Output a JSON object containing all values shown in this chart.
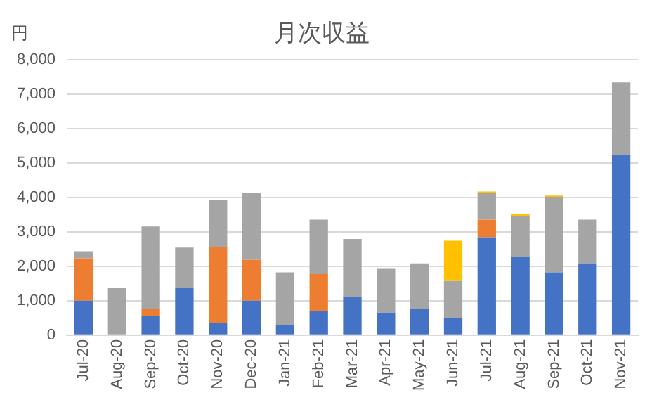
{
  "chart_data": {
    "type": "bar",
    "title": "月次収益",
    "ylabel": "円",
    "categories": [
      "Jul-20",
      "Aug-20",
      "Sep-20",
      "Oct-20",
      "Nov-20",
      "Dec-20",
      "Jan-21",
      "Feb-21",
      "Mar-21",
      "Apr-21",
      "May-21",
      "Jun-21",
      "Jul-21",
      "Aug-21",
      "Sep-21",
      "Oct-21",
      "Nov-21"
    ],
    "stacked": true,
    "series": [
      {
        "color": "#4472c4",
        "values": [
          1000,
          0,
          550,
          1360,
          340,
          1000,
          290,
          700,
          1110,
          650,
          750,
          490,
          2840,
          2280,
          1820,
          2080,
          5240
        ]
      },
      {
        "color": "#ed7d31",
        "values": [
          1230,
          0,
          200,
          0,
          2210,
          1180,
          0,
          1070,
          0,
          0,
          0,
          0,
          510,
          0,
          0,
          0,
          0
        ]
      },
      {
        "color": "#a5a5a5",
        "values": [
          200,
          1360,
          2400,
          1180,
          1370,
          1940,
          1530,
          1580,
          1680,
          1270,
          1330,
          1080,
          770,
          1180,
          2180,
          1270,
          2100
        ]
      },
      {
        "color": "#ffc000",
        "values": [
          0,
          0,
          0,
          0,
          0,
          0,
          0,
          0,
          0,
          0,
          0,
          1170,
          50,
          50,
          50,
          0,
          0
        ]
      }
    ],
    "ylim": [
      0,
      8000
    ],
    "yticks": [
      0,
      {
        "value": 1000,
        "label": "1,000"
      },
      {
        "value": 2000,
        "label": "2,000"
      },
      {
        "value": 3000,
        "label": "3,000"
      },
      {
        "value": 4000,
        "label": "4,000"
      },
      {
        "value": 5000,
        "label": "5,000"
      },
      {
        "value": 6000,
        "label": "6,000"
      },
      {
        "value": 7000,
        "label": "7,000"
      },
      {
        "value": 8000,
        "label": "8,000"
      }
    ],
    "grid": "y",
    "legend": false
  }
}
